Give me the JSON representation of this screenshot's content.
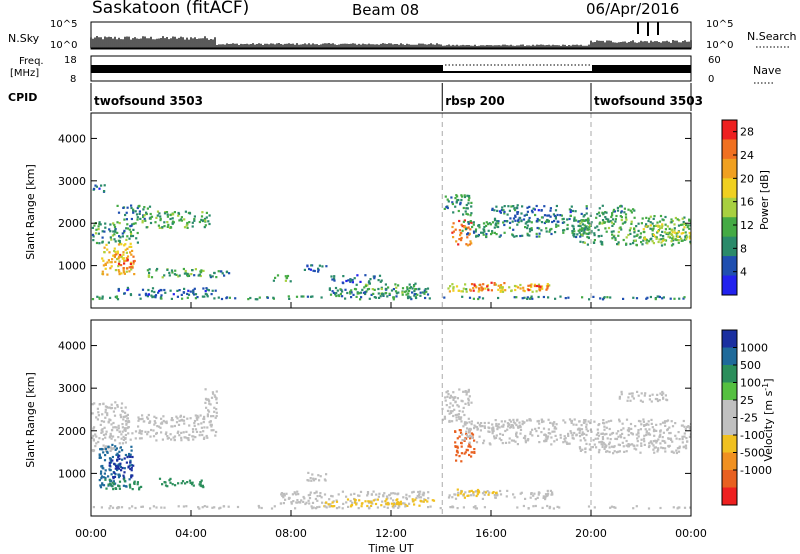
{
  "header": {
    "station": "Saskatoon (fitACF)",
    "beam": "Beam 08",
    "date": "06/Apr/2016"
  },
  "panels": {
    "nsky": {
      "left_label": "N.Sky",
      "right_label": "N.Search",
      "left_ticks": [
        "10^5",
        "10^0"
      ],
      "right_ticks": [
        "10^5",
        "10^0"
      ]
    },
    "freq": {
      "left_label_top": "Freq.",
      "left_label_bottom": "[MHz]",
      "left_ticks": [
        "18",
        "8"
      ],
      "right_label": "Nave",
      "right_ticks": [
        "60",
        "0"
      ]
    },
    "cpid": {
      "label": "CPID",
      "segments": [
        {
          "name": "twofsound 3503",
          "start_h": 0,
          "end_h": 14.05
        },
        {
          "name": "rbsp 200",
          "start_h": 14.05,
          "end_h": 20.0
        },
        {
          "name": "twofsound 3503",
          "start_h": 20.0,
          "end_h": 24
        }
      ]
    }
  },
  "colors": {
    "power_scale": [
      "#2222ee",
      "#1f4fb0",
      "#2a8a6a",
      "#44aa44",
      "#a8d040",
      "#f0d020",
      "#f0a020",
      "#f07020",
      "#ee2020"
    ],
    "velocity_scale": [
      "#1a2fa0",
      "#1f6a9a",
      "#2b8e5b",
      "#55c040",
      "#c0c0c0",
      "#c0c0c0",
      "#f0c020",
      "#f09020",
      "#e86020",
      "#ee2020"
    ],
    "ground_scatter": "#bdbdbd"
  },
  "chart_data": [
    {
      "type": "heatmap",
      "name": "power",
      "xlabel": "",
      "ylabel": "Slant Range [km]",
      "xlim": [
        0,
        24
      ],
      "ylim": [
        0,
        4600
      ],
      "yticks": [
        "1000",
        "2000",
        "3000",
        "4000"
      ],
      "colorbar": {
        "label": "Power [dB]",
        "ticks": [
          "4",
          "8",
          "12",
          "16",
          "20",
          "24",
          "28"
        ],
        "range": [
          0,
          30
        ]
      },
      "regions": [
        {
          "x": [
            0.0,
            1.9
          ],
          "y": [
            1550,
            2050
          ],
          "v": 10
        },
        {
          "x": [
            0.0,
            0.6
          ],
          "y": [
            2750,
            2950
          ],
          "v": 6
        },
        {
          "x": [
            0.4,
            1.7
          ],
          "y": [
            800,
            1550
          ],
          "v": 19
        },
        {
          "x": [
            0.9,
            1.8
          ],
          "y": [
            950,
            1300
          ],
          "v": 26
        },
        {
          "x": [
            1.0,
            2.4
          ],
          "y": [
            2100,
            2450
          ],
          "v": 8
        },
        {
          "x": [
            2.0,
            4.8
          ],
          "y": [
            1900,
            2300
          ],
          "v": 11
        },
        {
          "x": [
            2.2,
            4.5
          ],
          "y": [
            750,
            950
          ],
          "v": 12
        },
        {
          "x": [
            3.5,
            5.5
          ],
          "y": [
            750,
            900
          ],
          "v": 9
        },
        {
          "x": [
            1.0,
            5.0
          ],
          "y": [
            300,
            500
          ],
          "v": 6
        },
        {
          "x": [
            0.0,
            24.0
          ],
          "y": [
            230,
            300
          ],
          "v": 8
        },
        {
          "x": [
            7.2,
            8.1
          ],
          "y": [
            650,
            800
          ],
          "v": 11
        },
        {
          "x": [
            8.5,
            9.5
          ],
          "y": [
            850,
            1050
          ],
          "v": 6
        },
        {
          "x": [
            9.5,
            11.6
          ],
          "y": [
            600,
            800
          ],
          "v": 6
        },
        {
          "x": [
            9.5,
            13.5
          ],
          "y": [
            300,
            500
          ],
          "v": 8
        },
        {
          "x": [
            10.2,
            13.0
          ],
          "y": [
            350,
            600
          ],
          "v": 10
        },
        {
          "x": [
            14.0,
            15.2
          ],
          "y": [
            2200,
            2700
          ],
          "v": 9
        },
        {
          "x": [
            14.4,
            15.2
          ],
          "y": [
            1500,
            2100
          ],
          "v": 25
        },
        {
          "x": [
            14.8,
            20.0
          ],
          "y": [
            1700,
            2100
          ],
          "v": 9
        },
        {
          "x": [
            16.0,
            19.8
          ],
          "y": [
            2050,
            2450
          ],
          "v": 7
        },
        {
          "x": [
            14.2,
            18.3
          ],
          "y": [
            400,
            600
          ],
          "v": 17
        },
        {
          "x": [
            15.0,
            16.6
          ],
          "y": [
            430,
            620
          ],
          "v": 25
        },
        {
          "x": [
            16.9,
            18.4
          ],
          "y": [
            420,
            560
          ],
          "v": 25
        },
        {
          "x": [
            19.5,
            24.0
          ],
          "y": [
            1500,
            2200
          ],
          "v": 11
        },
        {
          "x": [
            20.2,
            21.8
          ],
          "y": [
            2200,
            2450
          ],
          "v": 9
        },
        {
          "x": [
            22.0,
            24.0
          ],
          "y": [
            1600,
            2000
          ],
          "v": 16
        }
      ]
    },
    {
      "type": "heatmap",
      "name": "velocity",
      "xlabel": "Time UT",
      "ylabel": "Slant Range [km]",
      "xlim": [
        0,
        24
      ],
      "ylim": [
        0,
        4600
      ],
      "xticks": [
        "00:00",
        "04:00",
        "08:00",
        "12:00",
        "16:00",
        "20:00",
        "00:00"
      ],
      "yticks": [
        "1000",
        "2000",
        "3000",
        "4000"
      ],
      "colorbar": {
        "label": "Velocity [m s^-1]",
        "ticks": [
          "1000",
          "500",
          "100",
          "25",
          "-25",
          "-100",
          "-500",
          "-1000"
        ]
      },
      "regions": [
        {
          "x": [
            0.0,
            1.4
          ],
          "y": [
            1550,
            2700
          ],
          "v": "ground"
        },
        {
          "x": [
            1.3,
            5.0
          ],
          "y": [
            1800,
            2400
          ],
          "v": "ground"
        },
        {
          "x": [
            4.5,
            5.0
          ],
          "y": [
            2300,
            3000
          ],
          "v": "ground"
        },
        {
          "x": [
            0.3,
            1.6
          ],
          "y": [
            700,
            1700
          ],
          "v": 300
        },
        {
          "x": [
            0.7,
            1.7
          ],
          "y": [
            900,
            1450
          ],
          "v": 900
        },
        {
          "x": [
            0.4,
            2.0
          ],
          "y": [
            650,
            900
          ],
          "v": 80
        },
        {
          "x": [
            2.5,
            4.5
          ],
          "y": [
            700,
            900
          ],
          "v": 70
        },
        {
          "x": [
            7.5,
            13.5
          ],
          "y": [
            300,
            600
          ],
          "v": "ground"
        },
        {
          "x": [
            8.5,
            9.5
          ],
          "y": [
            850,
            1050
          ],
          "v": "ground"
        },
        {
          "x": [
            9.2,
            12.5
          ],
          "y": [
            250,
            420
          ],
          "v": -80
        },
        {
          "x": [
            12.0,
            13.7
          ],
          "y": [
            260,
            420
          ],
          "v": -60
        },
        {
          "x": [
            14.0,
            15.2
          ],
          "y": [
            2200,
            3000
          ],
          "v": "ground"
        },
        {
          "x": [
            14.5,
            15.3
          ],
          "y": [
            1300,
            2100
          ],
          "v": -400
        },
        {
          "x": [
            14.8,
            20.0
          ],
          "y": [
            1700,
            2300
          ],
          "v": "ground"
        },
        {
          "x": [
            14.2,
            18.5
          ],
          "y": [
            420,
            620
          ],
          "v": "ground"
        },
        {
          "x": [
            14.6,
            16.2
          ],
          "y": [
            450,
            650
          ],
          "v": -60
        },
        {
          "x": [
            19.5,
            24.0
          ],
          "y": [
            1500,
            2300
          ],
          "v": "ground"
        },
        {
          "x": [
            21.0,
            23.0
          ],
          "y": [
            2700,
            2950
          ],
          "v": "ground"
        },
        {
          "x": [
            0.0,
            24.0
          ],
          "y": [
            200,
            260
          ],
          "v": "ground"
        }
      ]
    }
  ]
}
